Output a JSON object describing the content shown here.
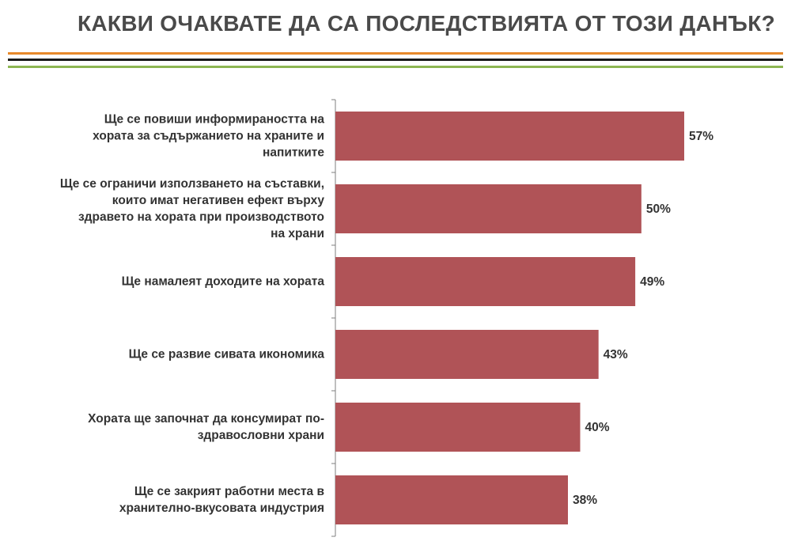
{
  "header": {
    "title": "КАКВИ ОЧАКВАТЕ ДА СА ПОСЛЕДСТВИЯТА ОТ ТОЗИ ДАНЪК?"
  },
  "colors": {
    "bar": "#b05357",
    "axis": "#7f7f7f",
    "rule_orange": "#e8892b",
    "rule_black": "#1a1a1a",
    "rule_green": "#8db652"
  },
  "chart_data": {
    "type": "bar",
    "orientation": "horizontal",
    "title": "КАКВИ ОЧАКВАТЕ ДА СА ПОСЛЕДСТВИЯТА ОТ ТОЗИ ДАНЪК?",
    "categories": [
      [
        "Ще се повиши информираността на",
        "хората за съдържанието на храните и",
        "напитките"
      ],
      [
        "Ще се ограничи използването на съставки,",
        "които имат негативен ефект върху",
        "здравето на хората при производството",
        "на храни"
      ],
      [
        "Ще намалеят доходите на хората"
      ],
      [
        "Ще се развие сивата икономика"
      ],
      [
        "Хората ще започнат да консумират по-",
        "здравословни храни"
      ],
      [
        "Ще се закрият работни места в",
        "хранително-вкусовата индустрия"
      ]
    ],
    "values": [
      57,
      50,
      49,
      43,
      40,
      38
    ],
    "value_labels": [
      "57%",
      "50%",
      "49%",
      "43%",
      "40%",
      "38%"
    ],
    "xlim": [
      0,
      57
    ],
    "grid": false,
    "legend": "none"
  }
}
